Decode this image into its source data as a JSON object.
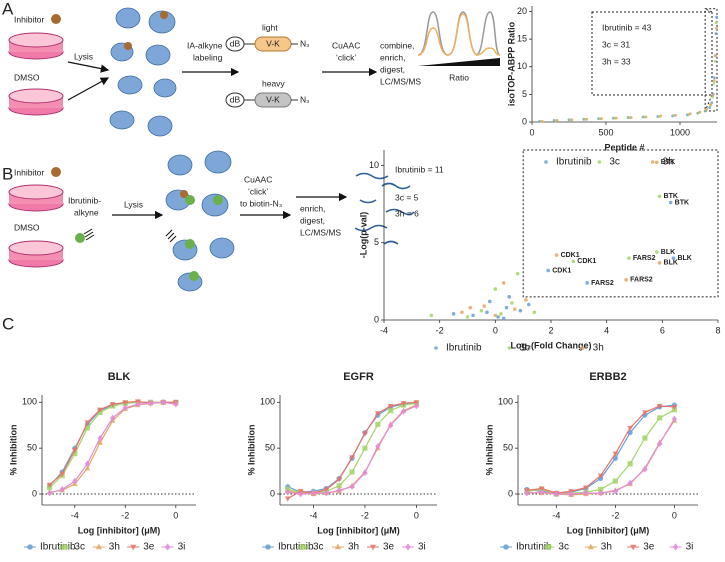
{
  "figure": {
    "panel_labels": [
      "A",
      "B",
      "C"
    ],
    "panel_a": {
      "inhibitor": "Inhibitor",
      "dmso": "DMSO",
      "lysis": "Lysis",
      "labeling": [
        "IA-alkyne",
        "labeling"
      ],
      "light": "light",
      "heavy": "heavy",
      "tag": "dB",
      "linker": "V-K",
      "azide": "N₃",
      "click": [
        "CuAAC",
        "‘click’"
      ],
      "workup": [
        "combine,",
        "enrich,",
        "digest,",
        "LC/MS/MS"
      ],
      "ratio": "Ratio"
    },
    "panel_b": {
      "inhibitor": "Inhibitor",
      "dmso": "DMSO",
      "probe": [
        "Ibrutinib-",
        "alkyne"
      ],
      "lysis": "Lysis",
      "click": [
        "CuAAC",
        "‘click’",
        "to biotin-N₃"
      ],
      "workup": [
        "enrich,",
        "digest,",
        "LC/MS/MS"
      ]
    }
  },
  "chart_data": [
    {
      "type": "scatter",
      "xlabel": "Peptide #",
      "ylabel": "isoTOP-ABPP Ratio",
      "xlim": [
        0,
        1250
      ],
      "xticks": [
        0,
        500,
        1000
      ],
      "ylim": [
        0,
        21
      ],
      "yticks": [
        0,
        5,
        10,
        15,
        20
      ],
      "legend": "bottom",
      "annotations": [
        "Ibrutinib = 43",
        "3c = 31",
        "3h = 33"
      ],
      "series": [
        {
          "name": "Ibrutinib",
          "color": "#6a9fd4",
          "marker": "circle",
          "x": [
            50,
            150,
            250,
            350,
            450,
            550,
            650,
            750,
            850,
            950,
            1050,
            1120,
            1170,
            1200,
            1215,
            1225,
            1232,
            1238,
            1243,
            1247
          ],
          "values": [
            0.1,
            0.3,
            0.4,
            0.5,
            0.6,
            0.7,
            0.8,
            0.9,
            1.0,
            1.1,
            1.3,
            1.6,
            2.0,
            2.6,
            3.5,
            5,
            8,
            12,
            16,
            19
          ]
        },
        {
          "name": "3c",
          "color": "#a5d46a",
          "marker": "circle",
          "x": [
            60,
            160,
            260,
            360,
            460,
            560,
            660,
            760,
            860,
            960,
            1060,
            1130,
            1175,
            1205,
            1220,
            1230,
            1237,
            1244
          ],
          "values": [
            0.1,
            0.2,
            0.4,
            0.5,
            0.6,
            0.7,
            0.8,
            0.9,
            1.0,
            1.2,
            1.4,
            1.7,
            2.2,
            3.0,
            4.5,
            7,
            11,
            18
          ]
        },
        {
          "name": "3h",
          "color": "#e0a864",
          "marker": "circle",
          "x": [
            70,
            170,
            270,
            370,
            470,
            570,
            670,
            770,
            870,
            970,
            1070,
            1135,
            1180,
            1208,
            1222,
            1232,
            1240,
            1246
          ],
          "values": [
            0.1,
            0.3,
            0.4,
            0.5,
            0.6,
            0.7,
            0.8,
            0.9,
            1.1,
            1.2,
            1.5,
            1.8,
            2.3,
            3.2,
            4.8,
            7.5,
            12,
            17
          ]
        }
      ]
    },
    {
      "type": "scatter",
      "xlabel": "Log₂(Fold Change)",
      "ylabel": "-Log(p-val)",
      "xlim": [
        -4,
        8
      ],
      "xticks": [
        -4,
        -2,
        0,
        2,
        4,
        6,
        8
      ],
      "ylim": [
        0,
        11
      ],
      "yticks": [
        0,
        5,
        10
      ],
      "legend": "bottom",
      "annotations": [
        "Ibrutinib = 11",
        "3c = 5",
        "3h = 6"
      ],
      "series": [
        {
          "name": "Ibrutinib",
          "color": "#6a9fd4",
          "label_color": "#3b78b8",
          "marker": "circle",
          "x": [
            0.1,
            -0.3,
            0.4,
            -0.8,
            0.9,
            -1.5,
            1.2,
            0.5,
            -0.2,
            0.3,
            1.9,
            3.3,
            6.3,
            6.4
          ],
          "values": [
            0.2,
            0.5,
            0.8,
            0.3,
            0.6,
            0.4,
            1.0,
            1.5,
            1.2,
            0.1,
            3.2,
            2.4,
            7.6,
            4.0
          ],
          "labels": [
            null,
            null,
            null,
            null,
            null,
            null,
            null,
            null,
            null,
            null,
            "CDK1",
            "FARS2",
            "BTK",
            "BLK"
          ]
        },
        {
          "name": "3c",
          "color": "#a5d46a",
          "label_color": "#5d9a2a",
          "marker": "circle",
          "x": [
            0.2,
            -0.5,
            0.6,
            -1.0,
            1.4,
            0.0,
            -2.3,
            0.8,
            2.8,
            4.8,
            5.9,
            5.8
          ],
          "values": [
            0.4,
            0.6,
            1.1,
            0.2,
            0.5,
            2.0,
            0.3,
            3.0,
            3.8,
            4.0,
            8.0,
            4.4
          ],
          "labels": [
            null,
            null,
            null,
            null,
            null,
            null,
            null,
            null,
            "CDK1",
            "FARS2",
            "BTK",
            "BLK"
          ]
        },
        {
          "name": "3h",
          "color": "#e0a864",
          "label_color": "#b87a22",
          "marker": "circle",
          "x": [
            0.0,
            -0.4,
            0.7,
            -1.2,
            1.1,
            0.3,
            -0.9,
            2.2,
            4.7,
            5.8,
            5.9
          ],
          "values": [
            0.3,
            0.9,
            0.7,
            0.5,
            1.3,
            2.4,
            0.8,
            4.2,
            2.6,
            10.2,
            3.7
          ],
          "labels": [
            null,
            null,
            null,
            null,
            null,
            null,
            null,
            "CDK1",
            "FARS2",
            "BTK",
            "BLK"
          ]
        }
      ]
    },
    {
      "type": "dose",
      "title": "BLK",
      "xlabel": "Log [inhibitor] (μM)",
      "ylabel": "% Inhibition",
      "xlim": [
        -5.3,
        0.8
      ],
      "xticks": [
        -4,
        -2,
        0
      ],
      "ylim": [
        -12,
        108
      ],
      "yticks": [
        0,
        50,
        100
      ],
      "zero_line": true,
      "legend": "bottom",
      "x": [
        -5,
        -4.5,
        -4,
        -3.5,
        -3,
        -2.5,
        -2,
        -1.5,
        -1,
        -0.5,
        0
      ],
      "series": [
        {
          "name": "Ibrutinib",
          "color": "#6a9fd4",
          "marker": "circle",
          "values": [
            9,
            24,
            50,
            76,
            91,
            97,
            99,
            100,
            100,
            100,
            100
          ]
        },
        {
          "name": "3c",
          "color": "#a5d46a",
          "marker": "square",
          "values": [
            7,
            20,
            44,
            72,
            89,
            96,
            99,
            100,
            100,
            100,
            100
          ]
        },
        {
          "name": "3h",
          "color": "#e0a864",
          "marker": "triangle",
          "values": [
            2,
            4,
            11,
            28,
            56,
            80,
            93,
            97,
            99,
            100,
            99
          ]
        },
        {
          "name": "3e",
          "color": "#e6736b",
          "marker": "triangle-down",
          "values": [
            10,
            22,
            48,
            78,
            92,
            98,
            100,
            101,
            99,
            100,
            100
          ]
        },
        {
          "name": "3i",
          "color": "#e48ad8",
          "marker": "diamond",
          "values": [
            1,
            5,
            14,
            33,
            61,
            83,
            94,
            98,
            99,
            100,
            98
          ]
        }
      ]
    },
    {
      "type": "dose",
      "title": "EGFR",
      "xlabel": "Log [inhibitor] (μM)",
      "ylabel": "% Inhibition",
      "xlim": [
        -5.3,
        0.8
      ],
      "xticks": [
        -4,
        -2,
        0
      ],
      "ylim": [
        -12,
        108
      ],
      "yticks": [
        0,
        50,
        100
      ],
      "zero_line": true,
      "legend": "bottom",
      "x": [
        -5,
        -4.5,
        -4,
        -3.5,
        -3,
        -2.5,
        -2,
        -1.5,
        -1,
        -0.5,
        0
      ],
      "series": [
        {
          "name": "Ibrutinib",
          "color": "#6a9fd4",
          "marker": "circle",
          "values": [
            8,
            2,
            3,
            6,
            17,
            39,
            67,
            86,
            95,
            98,
            99
          ]
        },
        {
          "name": "3c",
          "color": "#a5d46a",
          "marker": "square",
          "values": [
            5,
            2,
            1,
            3,
            9,
            24,
            50,
            76,
            91,
            97,
            99
          ]
        },
        {
          "name": "3h",
          "color": "#e0a864",
          "marker": "triangle",
          "values": [
            3,
            1,
            0,
            1,
            3,
            9,
            24,
            50,
            76,
            91,
            97
          ]
        },
        {
          "name": "3e",
          "color": "#e6736b",
          "marker": "triangle-down",
          "values": [
            -5,
            3,
            1,
            5,
            16,
            40,
            66,
            88,
            96,
            99,
            100
          ]
        },
        {
          "name": "3i",
          "color": "#e48ad8",
          "marker": "diamond",
          "values": [
            2,
            0,
            1,
            1,
            4,
            8,
            23,
            52,
            75,
            90,
            96
          ]
        }
      ]
    },
    {
      "type": "dose",
      "title": "ERBB2",
      "xlabel": "Log [inhibitor] (μM)",
      "ylabel": "% Inhibition",
      "xlim": [
        -5.3,
        0.8
      ],
      "xticks": [
        -4,
        -2,
        0
      ],
      "ylim": [
        -12,
        108
      ],
      "yticks": [
        0,
        50,
        100
      ],
      "zero_line": true,
      "legend": "bottom",
      "x": [
        -5,
        -4.5,
        -4,
        -3.5,
        -3,
        -2.5,
        -2,
        -1.5,
        -1,
        -0.5,
        0
      ],
      "series": [
        {
          "name": "Ibrutinib",
          "color": "#6a9fd4",
          "marker": "circle",
          "values": [
            5,
            3,
            1,
            2,
            6,
            17,
            39,
            67,
            86,
            95,
            97
          ]
        },
        {
          "name": "3c",
          "color": "#a5d46a",
          "marker": "square",
          "values": [
            3,
            5,
            0,
            1,
            2,
            5,
            14,
            33,
            61,
            83,
            92
          ]
        },
        {
          "name": "3h",
          "color": "#e0a864",
          "marker": "triangle",
          "values": [
            2,
            1,
            0,
            -1,
            0,
            1,
            4,
            11,
            28,
            56,
            80
          ]
        },
        {
          "name": "3e",
          "color": "#e6736b",
          "marker": "triangle-down",
          "values": [
            4,
            6,
            1,
            3,
            7,
            20,
            44,
            72,
            89,
            96,
            95
          ]
        },
        {
          "name": "3i",
          "color": "#e48ad8",
          "marker": "diamond",
          "values": [
            1,
            2,
            0,
            0,
            1,
            1,
            3,
            12,
            27,
            55,
            82
          ]
        }
      ]
    }
  ]
}
